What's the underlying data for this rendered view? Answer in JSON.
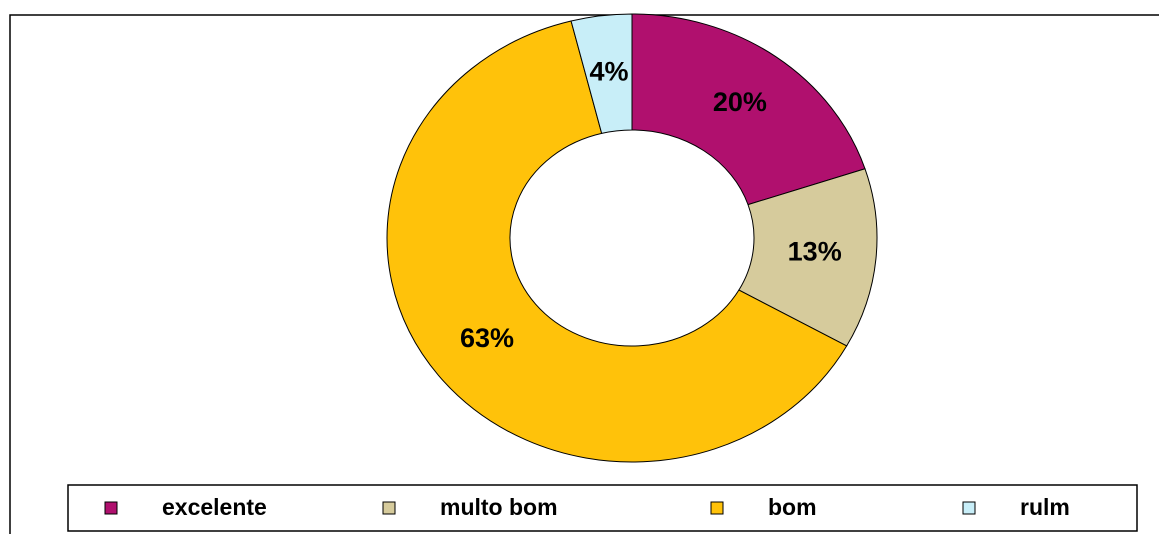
{
  "chart_data": {
    "type": "donut",
    "categories": [
      "excelente",
      "multo bom",
      "bom",
      "rulm"
    ],
    "values": [
      20,
      13,
      63,
      4
    ],
    "value_labels": [
      "20%",
      "13%",
      "63%",
      "4%"
    ],
    "colors": [
      "#b0106e",
      "#d6cb9c",
      "#ffc20a",
      "#c8eef8"
    ],
    "legend": "bottom"
  }
}
